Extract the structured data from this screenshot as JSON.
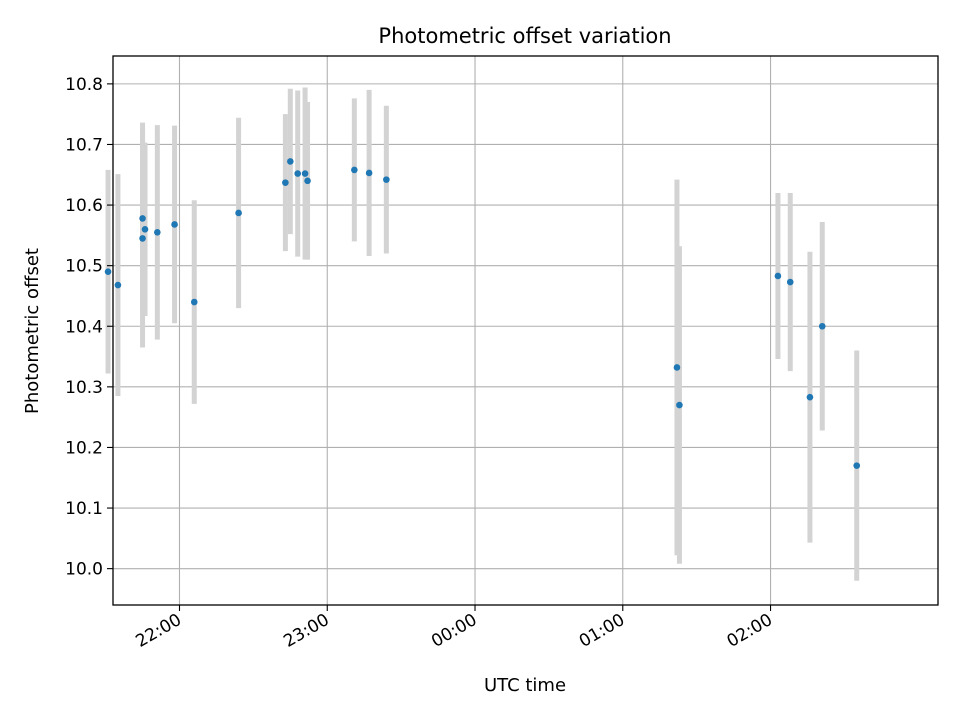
{
  "chart_data": {
    "type": "scatter",
    "title": "Photometric offset variation",
    "xlabel": "UTC time",
    "ylabel": "Photometric offset",
    "x_ticks": [
      "22:00",
      "23:00",
      "00:00",
      "01:00",
      "02:00"
    ],
    "y_ticks": [
      "10.0",
      "10.1",
      "10.2",
      "10.3",
      "10.4",
      "10.5",
      "10.6",
      "10.7",
      "10.8"
    ],
    "xlim": [
      "21:33",
      "03:08"
    ],
    "ylim": [
      9.94,
      10.846
    ],
    "grid": true,
    "colors": {
      "points": "#1f77b4",
      "error_bars": "#d3d3d3",
      "grid": "#b0b0b0"
    },
    "points": [
      {
        "time": "21:31",
        "y": 10.49,
        "err": 0.168
      },
      {
        "time": "21:35",
        "y": 10.468,
        "err": 0.183
      },
      {
        "time": "21:45",
        "y": 10.545,
        "err": 0.18
      },
      {
        "time": "21:45",
        "y": 10.578,
        "err": 0.158
      },
      {
        "time": "21:46",
        "y": 10.56,
        "err": 0.143
      },
      {
        "time": "21:51",
        "y": 10.555,
        "err": 0.177
      },
      {
        "time": "21:58",
        "y": 10.568,
        "err": 0.163
      },
      {
        "time": "22:06",
        "y": 10.44,
        "err": 0.168
      },
      {
        "time": "22:24",
        "y": 10.587,
        "err": 0.157
      },
      {
        "time": "22:43",
        "y": 10.637,
        "err": 0.113
      },
      {
        "time": "22:45",
        "y": 10.672,
        "err": 0.12
      },
      {
        "time": "22:48",
        "y": 10.652,
        "err": 0.137
      },
      {
        "time": "22:51",
        "y": 10.652,
        "err": 0.142
      },
      {
        "time": "22:52",
        "y": 10.64,
        "err": 0.13
      },
      {
        "time": "23:11",
        "y": 10.658,
        "err": 0.118
      },
      {
        "time": "23:17",
        "y": 10.653,
        "err": 0.137
      },
      {
        "time": "23:24",
        "y": 10.642,
        "err": 0.122
      },
      {
        "time": "01:22",
        "y": 10.332,
        "err": 0.31
      },
      {
        "time": "01:23",
        "y": 10.27,
        "err": 0.262
      },
      {
        "time": "02:03",
        "y": 10.483,
        "err": 0.137
      },
      {
        "time": "02:08",
        "y": 10.473,
        "err": 0.147
      },
      {
        "time": "02:16",
        "y": 10.283,
        "err": 0.24
      },
      {
        "time": "02:21",
        "y": 10.4,
        "err": 0.172
      },
      {
        "time": "02:35",
        "y": 10.17,
        "err": 0.19
      }
    ]
  }
}
